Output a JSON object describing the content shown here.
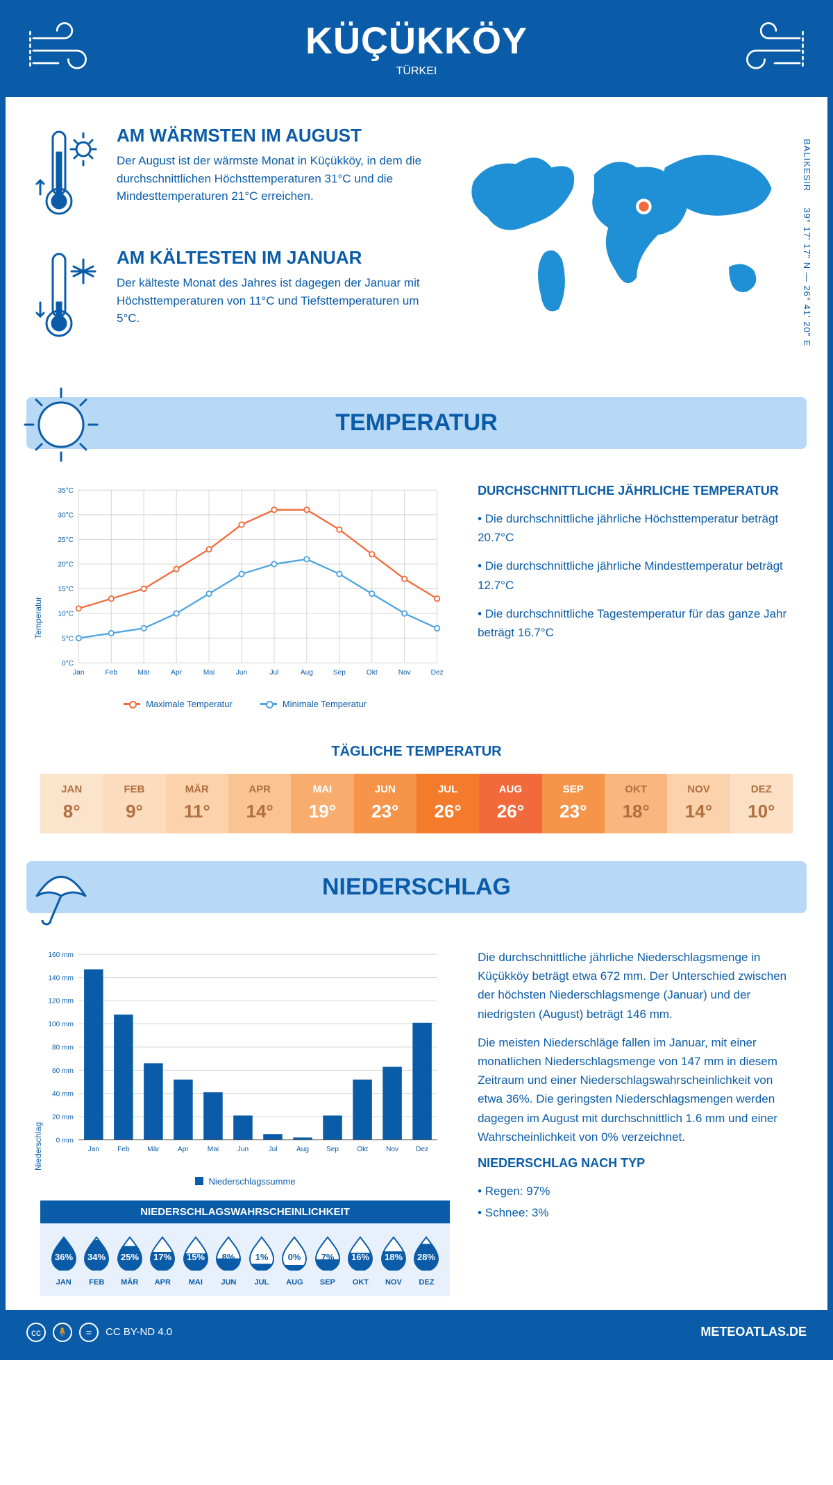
{
  "colors": {
    "primary": "#0b5ca8",
    "light_blue": "#4da3e0",
    "pale_blue": "#b8d9f5",
    "bg_blue": "#e8f1fb",
    "orange": "#f26a3c",
    "grid": "#d0d0d0"
  },
  "header": {
    "city": "KÜÇÜKKÖY",
    "country": "TÜRKEI"
  },
  "map": {
    "coords": "39° 17' 17\" N — 26° 41' 20\" E",
    "region": "BALIKESIR"
  },
  "warm": {
    "title": "AM WÄRMSTEN IM AUGUST",
    "text": "Der August ist der wärmste Monat in Küçükköy, in dem die durchschnittlichen Höchsttemperaturen 31°C und die Mindesttemperaturen 21°C erreichen."
  },
  "cold": {
    "title": "AM KÄLTESTEN IM JANUAR",
    "text": "Der kälteste Monat des Jahres ist dagegen der Januar mit Höchsttemperaturen von 11°C und Tiefsttemperaturen um 5°C."
  },
  "section_temp": "TEMPERATUR",
  "section_precip": "NIEDERSCHLAG",
  "months": [
    "Jan",
    "Feb",
    "Mär",
    "Apr",
    "Mai",
    "Jun",
    "Jul",
    "Aug",
    "Sep",
    "Okt",
    "Nov",
    "Dez"
  ],
  "months_upper": [
    "JAN",
    "FEB",
    "MÄR",
    "APR",
    "MAI",
    "JUN",
    "JUL",
    "AUG",
    "SEP",
    "OKT",
    "NOV",
    "DEZ"
  ],
  "temp_chart": {
    "type": "line",
    "ylabel": "Temperatur",
    "ymin": 0,
    "ymax": 35,
    "ystep": 5,
    "yunit": "°C",
    "series": [
      {
        "name": "Maximale Temperatur",
        "color": "#f26a3c",
        "values": [
          11,
          13,
          15,
          19,
          23,
          28,
          31,
          31,
          27,
          22,
          17,
          13
        ]
      },
      {
        "name": "Minimale Temperatur",
        "color": "#4da3e0",
        "values": [
          5,
          6,
          7,
          10,
          14,
          18,
          20,
          21,
          18,
          14,
          10,
          7
        ]
      }
    ]
  },
  "temp_info": {
    "title": "DURCHSCHNITTLICHE JÄHRLICHE TEMPERATUR",
    "b1": "• Die durchschnittliche jährliche Höchsttemperatur beträgt 20.7°C",
    "b2": "• Die durchschnittliche jährliche Mindesttemperatur beträgt 12.7°C",
    "b3": "• Die durchschnittliche Tagestemperatur für das ganze Jahr beträgt 16.7°C"
  },
  "daily_temp_title": "TÄGLICHE TEMPERATUR",
  "daily_temp": {
    "values": [
      "8°",
      "9°",
      "11°",
      "14°",
      "19°",
      "23°",
      "26°",
      "26°",
      "23°",
      "18°",
      "14°",
      "10°"
    ],
    "bg_colors": [
      "#fce4cc",
      "#fcdcbf",
      "#fbd2ac",
      "#fac393",
      "#f8ad6e",
      "#f6954a",
      "#f47b2c",
      "#f26a3c",
      "#f6954a",
      "#f9b77f",
      "#fbd2ac",
      "#fce0c5"
    ],
    "text_colors": [
      "#b07040",
      "#b07040",
      "#b07040",
      "#b07040",
      "#ffffff",
      "#ffffff",
      "#ffffff",
      "#ffffff",
      "#ffffff",
      "#b07040",
      "#b07040",
      "#b07040"
    ]
  },
  "precip_chart": {
    "type": "bar",
    "ylabel": "Niederschlag",
    "ymin": 0,
    "ymax": 160,
    "ystep": 20,
    "yunit": " mm",
    "color": "#0b5ca8",
    "legend": "Niederschlagssumme",
    "values": [
      147,
      108,
      66,
      52,
      41,
      21,
      5,
      2,
      21,
      52,
      63,
      101
    ]
  },
  "precip_text": {
    "p1": "Die durchschnittliche jährliche Niederschlagsmenge in Küçükköy beträgt etwa 672 mm. Der Unterschied zwischen der höchsten Niederschlagsmenge (Januar) und der niedrigsten (August) beträgt 146 mm.",
    "p2": "Die meisten Niederschläge fallen im Januar, mit einer monatlichen Niederschlagsmenge von 147 mm in diesem Zeitraum und einer Niederschlagswahrscheinlichkeit von etwa 36%. Die geringsten Niederschlagsmengen werden dagegen im August mit durchschnittlich 1.6 mm und einer Wahrscheinlichkeit von 0% verzeichnet.",
    "type_title": "NIEDERSCHLAG NACH TYP",
    "t1": "• Regen: 97%",
    "t2": "• Schnee: 3%"
  },
  "prob": {
    "title": "NIEDERSCHLAGSWAHRSCHEINLICHKEIT",
    "values": [
      "36%",
      "34%",
      "25%",
      "17%",
      "15%",
      "8%",
      "1%",
      "0%",
      "7%",
      "16%",
      "18%",
      "28%"
    ],
    "fill_ratio": [
      1.0,
      0.95,
      0.72,
      0.5,
      0.44,
      0.25,
      0.05,
      0.0,
      0.22,
      0.46,
      0.52,
      0.8
    ]
  },
  "footer": {
    "license": "CC BY-ND 4.0",
    "brand": "METEOATLAS.DE"
  }
}
